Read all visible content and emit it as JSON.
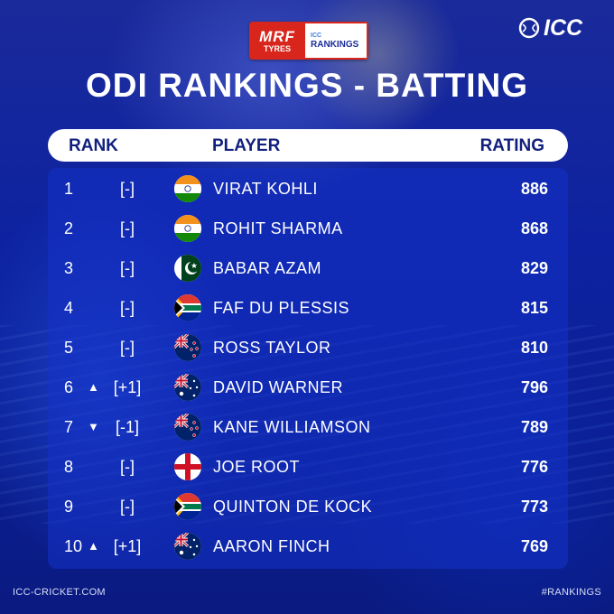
{
  "badge": {
    "sponsor_top": "MRF",
    "sponsor_bottom": "TYRES",
    "icc_small": "ICC",
    "rankings_label": "RANKINGS"
  },
  "brand": {
    "logo_text": "ICC"
  },
  "title": "ODI RANKINGS - BATTING",
  "columns": {
    "rank": "RANK",
    "player": "PLAYER",
    "rating": "RATING"
  },
  "rows": [
    {
      "rank": "1",
      "arrow": "",
      "move": "[-]",
      "country": "india",
      "name": "VIRAT KOHLI",
      "rating": "886"
    },
    {
      "rank": "2",
      "arrow": "",
      "move": "[-]",
      "country": "india",
      "name": "ROHIT SHARMA",
      "rating": "868"
    },
    {
      "rank": "3",
      "arrow": "",
      "move": "[-]",
      "country": "pakistan",
      "name": "BABAR AZAM",
      "rating": "829"
    },
    {
      "rank": "4",
      "arrow": "",
      "move": "[-]",
      "country": "south-africa",
      "name": "FAF DU PLESSIS",
      "rating": "815"
    },
    {
      "rank": "5",
      "arrow": "",
      "move": "[-]",
      "country": "new-zealand",
      "name": "ROSS TAYLOR",
      "rating": "810"
    },
    {
      "rank": "6",
      "arrow": "▲",
      "move": "[+1]",
      "country": "australia",
      "name": "DAVID WARNER",
      "rating": "796"
    },
    {
      "rank": "7",
      "arrow": "▼",
      "move": "[-1]",
      "country": "new-zealand",
      "name": "KANE WILLIAMSON",
      "rating": "789"
    },
    {
      "rank": "8",
      "arrow": "",
      "move": "[-]",
      "country": "england",
      "name": "JOE ROOT",
      "rating": "776"
    },
    {
      "rank": "9",
      "arrow": "",
      "move": "[-]",
      "country": "south-africa",
      "name": "QUINTON DE KOCK",
      "rating": "773"
    },
    {
      "rank": "10",
      "arrow": "▲",
      "move": "[+1]",
      "country": "australia",
      "name": "AARON FINCH",
      "rating": "769"
    }
  ],
  "footer": {
    "website": "ICC-CRICKET.COM",
    "hashtag": "#RANKINGS"
  },
  "colors": {
    "background": "#0b1f8f",
    "header_text": "#12207d",
    "sponsor_red": "#d9261c"
  }
}
